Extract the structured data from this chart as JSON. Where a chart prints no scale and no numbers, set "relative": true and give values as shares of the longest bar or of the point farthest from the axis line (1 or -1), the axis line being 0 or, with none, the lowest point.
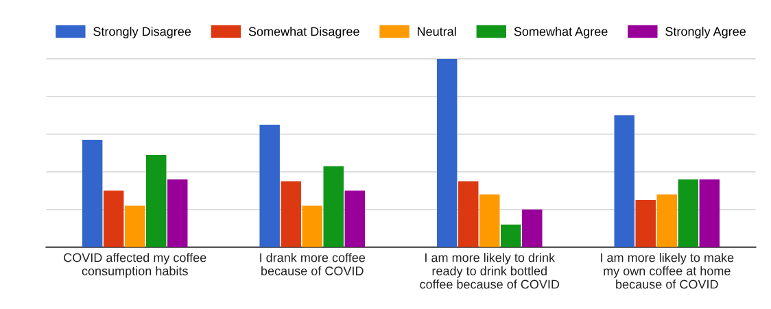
{
  "chart_data": {
    "type": "bar",
    "relative": true,
    "grid": "y",
    "legend": "top",
    "categories": [
      "COVID affected my coffee\nconsumption habits",
      "I drank more coffee\nbecause of COVID",
      "I am more likely to drink\nready to drink bottled\ncoffee because of COVID",
      "I am more likely to make\nmy own coffee at home\nbecause of COVID"
    ],
    "series": [
      {
        "name": "Strongly Disagree",
        "color": "#3366cc",
        "values": [
          0.57,
          0.65,
          1,
          0.7
        ]
      },
      {
        "name": "Somewhat Disagree",
        "color": "#dc3912",
        "values": [
          0.3,
          0.35,
          0.35,
          0.25
        ]
      },
      {
        "name": "Neutral",
        "color": "#ff9900",
        "values": [
          0.22,
          0.22,
          0.28,
          0.28
        ]
      },
      {
        "name": "Somewhat Agree",
        "color": "#109618",
        "values": [
          0.49,
          0.43,
          0.12,
          0.36
        ]
      },
      {
        "name": "Strongly Agree",
        "color": "#990099",
        "values": [
          0.36,
          0.3,
          0.2,
          0.36
        ]
      }
    ]
  }
}
